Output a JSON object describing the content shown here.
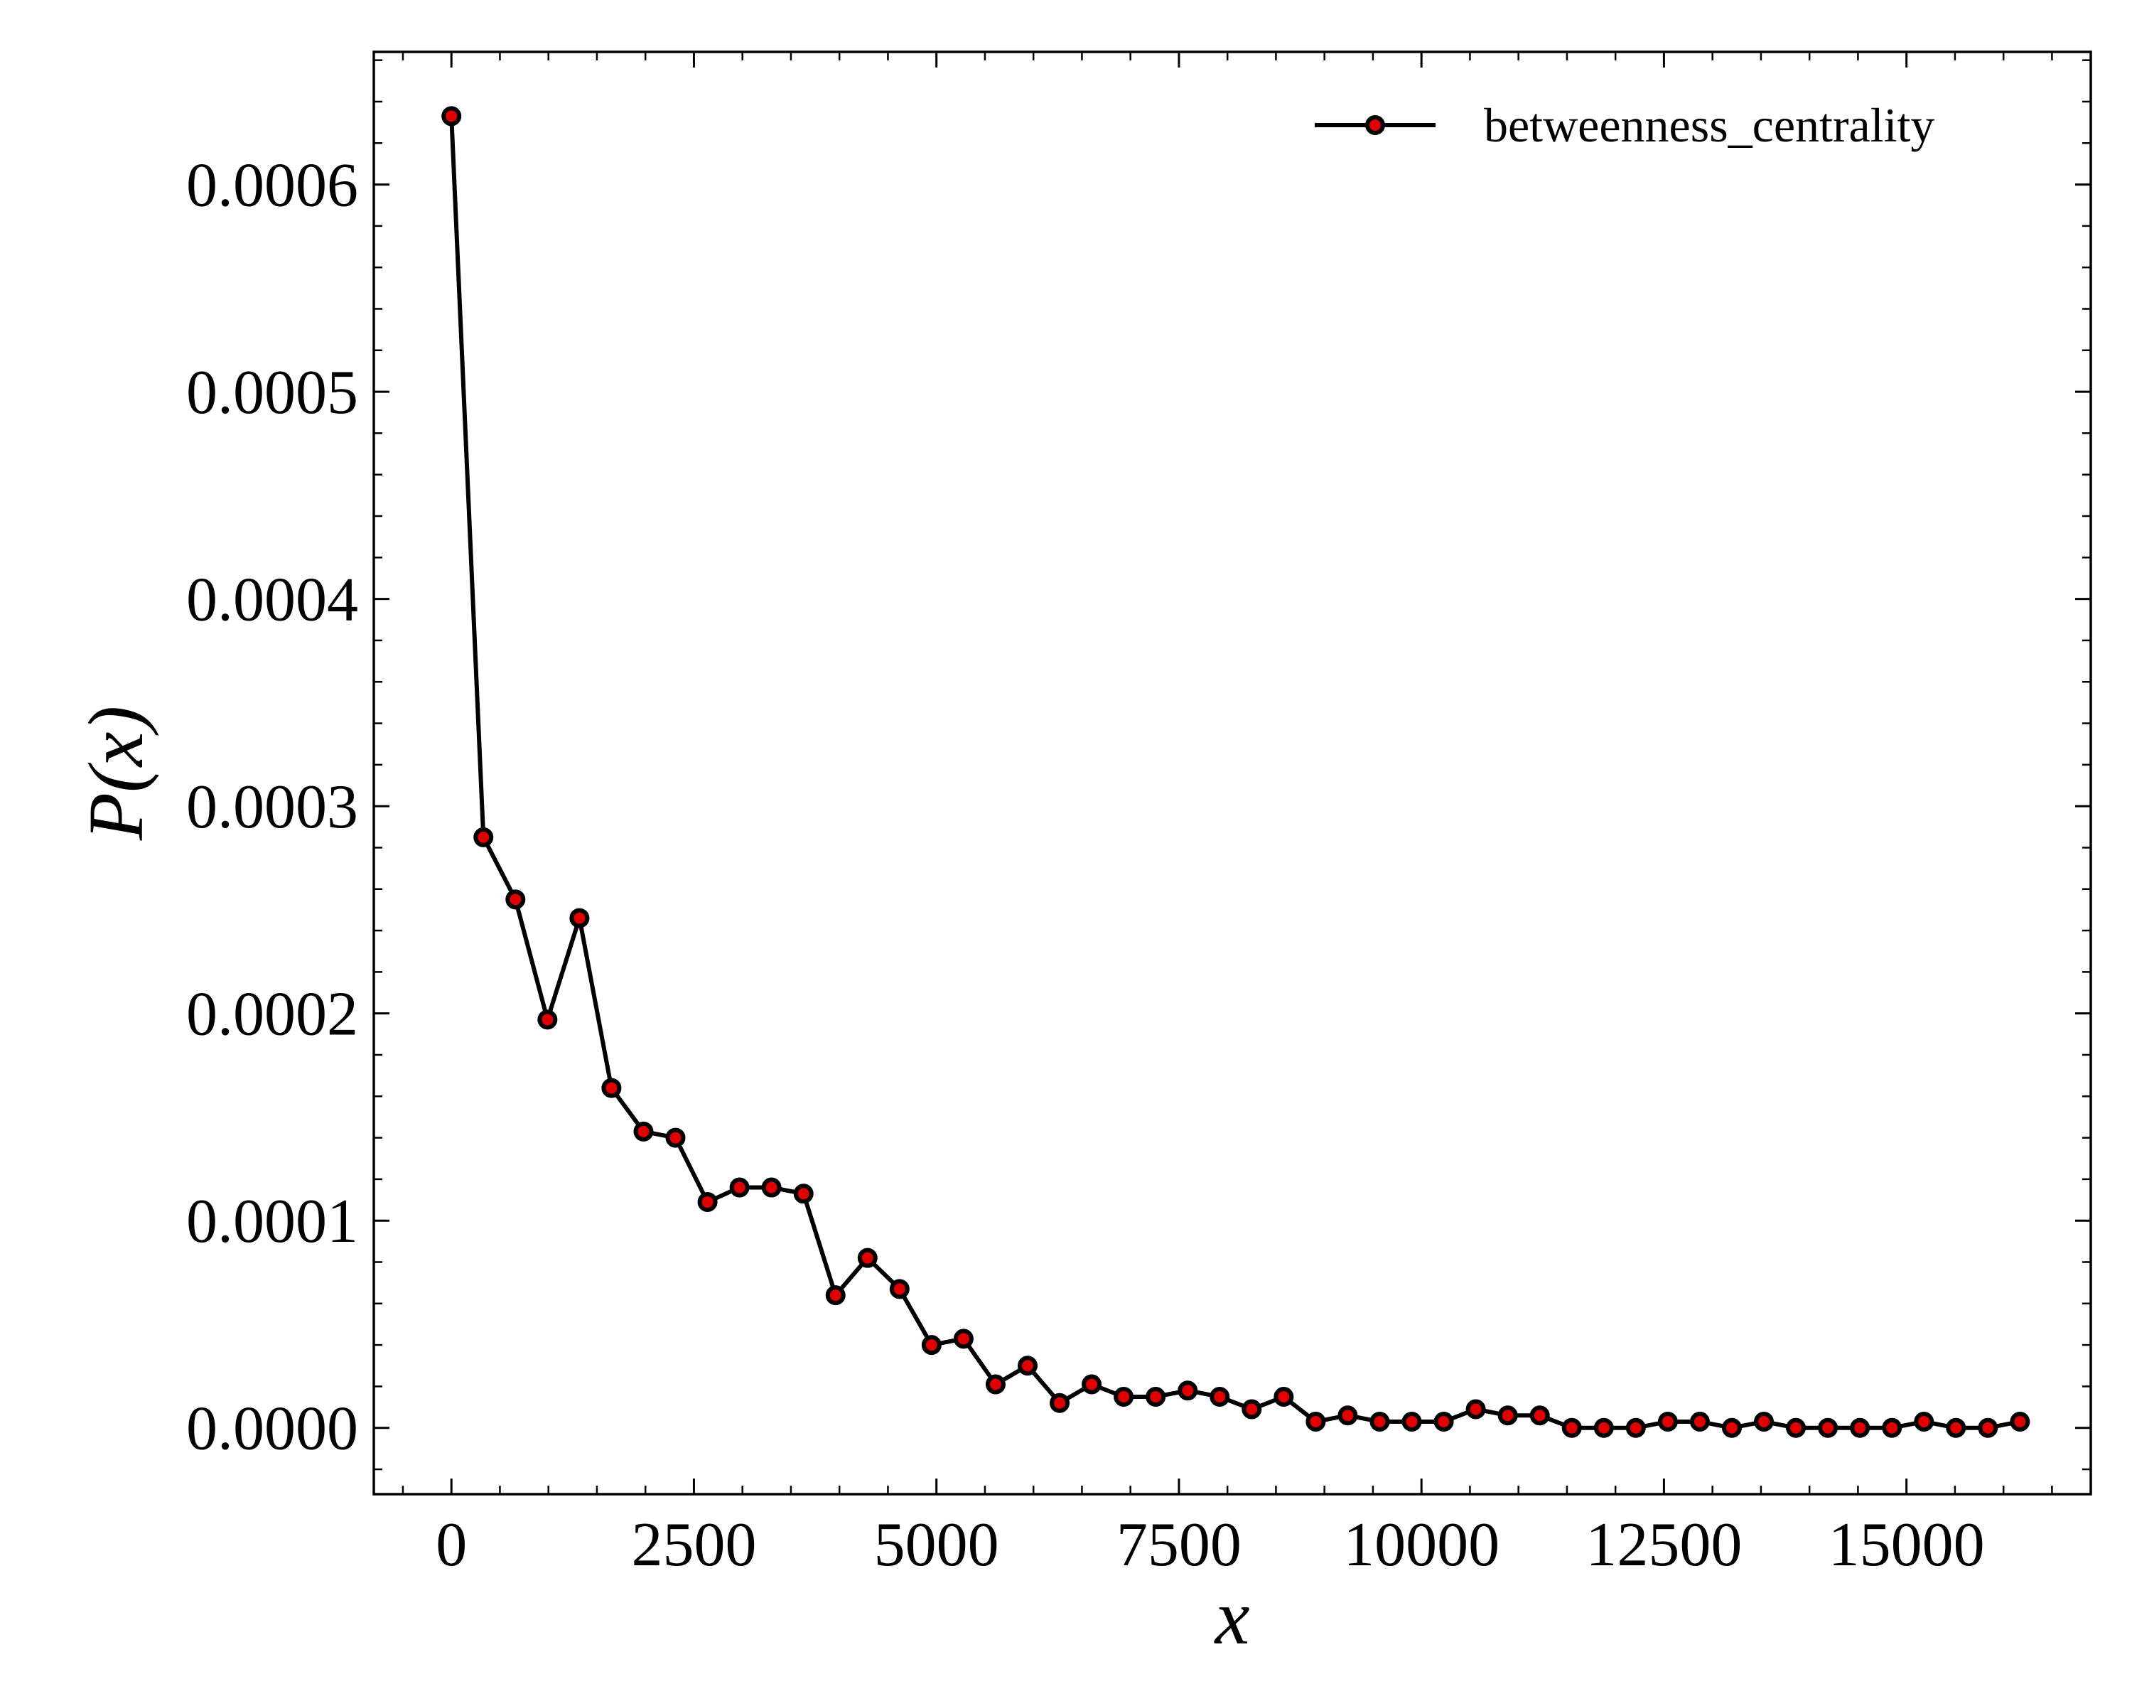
{
  "chart_data": {
    "type": "line",
    "title": "",
    "xlabel": "x",
    "ylabel": "P(x)",
    "xlim": [
      -800,
      16900
    ],
    "ylim": [
      -3.2e-05,
      0.000664
    ],
    "x_ticks": [
      0,
      2500,
      5000,
      7500,
      10000,
      12500,
      15000
    ],
    "x_tick_labels": [
      "0",
      "2500",
      "5000",
      "7500",
      "10000",
      "12500",
      "15000"
    ],
    "x_minor_step": 500,
    "y_ticks": [
      0,
      0.0001,
      0.0002,
      0.0003,
      0.0004,
      0.0005,
      0.0006
    ],
    "y_tick_labels": [
      "0.0000",
      "0.0001",
      "0.0002",
      "0.0003",
      "0.0004",
      "0.0005",
      "0.0006"
    ],
    "y_minor_step": 2e-05,
    "grid": false,
    "legend_position": "top-right",
    "line_color": "#000000",
    "marker_color": "#e00000",
    "marker_edge_color": "#000000",
    "series": [
      {
        "name": "betweenness_centrality",
        "x": [
          0,
          330,
          660,
          990,
          1320,
          1650,
          1980,
          2310,
          2640,
          2970,
          3300,
          3630,
          3960,
          4290,
          4620,
          4950,
          5280,
          5610,
          5940,
          6270,
          6600,
          6930,
          7260,
          7590,
          7920,
          8250,
          8580,
          8910,
          9240,
          9570,
          9900,
          10230,
          10560,
          10890,
          11220,
          11550,
          11880,
          12210,
          12540,
          12870,
          13200,
          13530,
          13860,
          14190,
          14520,
          14850,
          15180,
          15510,
          15840,
          16170
        ],
        "y": [
          0.000633,
          0.000285,
          0.000255,
          0.000197,
          0.000246,
          0.000164,
          0.000143,
          0.00014,
          0.000109,
          0.000116,
          0.000116,
          0.000113,
          6.4e-05,
          8.2e-05,
          6.7e-05,
          4e-05,
          4.3e-05,
          2.1e-05,
          3e-05,
          1.2e-05,
          2.1e-05,
          1.5e-05,
          1.5e-05,
          1.8e-05,
          1.5e-05,
          9e-06,
          1.5e-05,
          3e-06,
          6e-06,
          3e-06,
          3e-06,
          3e-06,
          9e-06,
          6e-06,
          6e-06,
          0.0,
          0.0,
          0.0,
          3e-06,
          3e-06,
          0.0,
          3e-06,
          0.0,
          0.0,
          0.0,
          0.0,
          3e-06,
          0.0,
          0.0,
          3e-06
        ]
      }
    ]
  }
}
